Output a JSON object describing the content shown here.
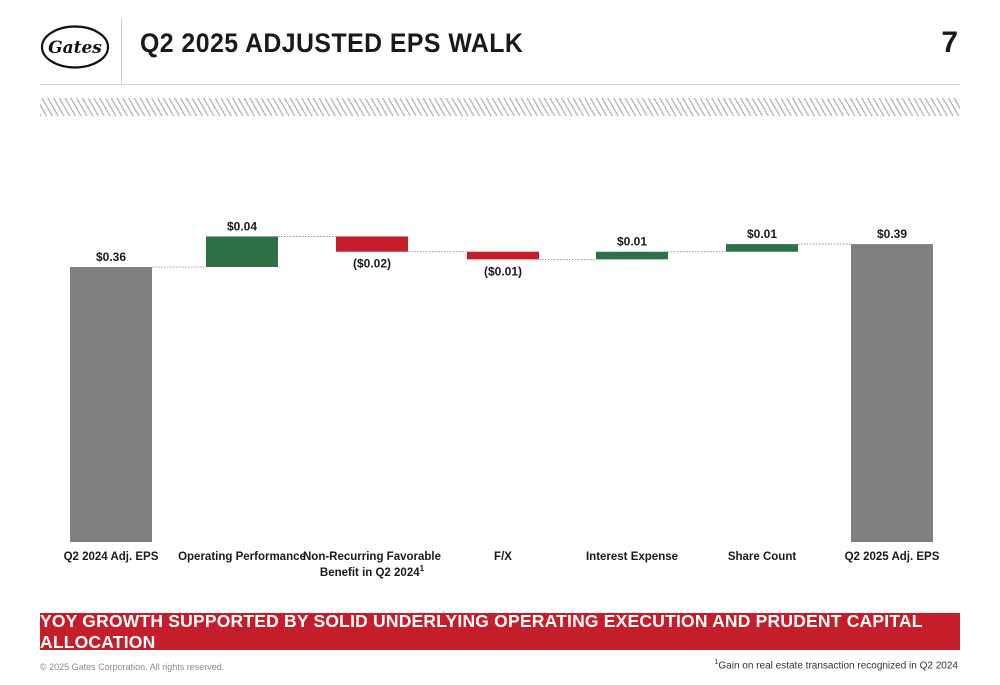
{
  "header": {
    "logo_text": "Gates",
    "title": "Q2 2025 ADJUSTED EPS WALK",
    "page_number": "7"
  },
  "chart_data": {
    "type": "waterfall",
    "categories": [
      "Q2 2024 Adj. EPS",
      "Operating Performance",
      "Non-Recurring Favorable Benefit in Q2 2024",
      "F/X",
      "Interest Expense",
      "Share Count",
      "Q2 2025 Adj. EPS"
    ],
    "category_superscripts": [
      "",
      "",
      "1",
      "",
      "",
      "",
      ""
    ],
    "values": [
      0.36,
      0.04,
      -0.02,
      -0.01,
      0.01,
      0.01,
      0.39
    ],
    "kinds": [
      "total",
      "delta",
      "delta",
      "delta",
      "delta",
      "delta",
      "total"
    ],
    "data_labels": [
      "$0.36",
      "$0.04",
      "($0.02)",
      "($0.01)",
      "$0.01",
      "$0.01",
      "$0.39"
    ],
    "colors": {
      "total": "#808080",
      "increase": "#2e7147",
      "decrease": "#c41e2b",
      "connector": "#808080"
    },
    "connectors": "dotted",
    "axis_visible": false,
    "grid": false
  },
  "banner": {
    "text": "YOY GROWTH SUPPORTED BY SOLID UNDERLYING OPERATING EXECUTION AND PRUDENT CAPITAL ALLOCATION"
  },
  "footer": {
    "copyright": "© 2025 Gates Corporation. All rights reserved.",
    "footnote_marker": "1",
    "footnote": "Gain on real estate transaction recognized in Q2 2024"
  }
}
